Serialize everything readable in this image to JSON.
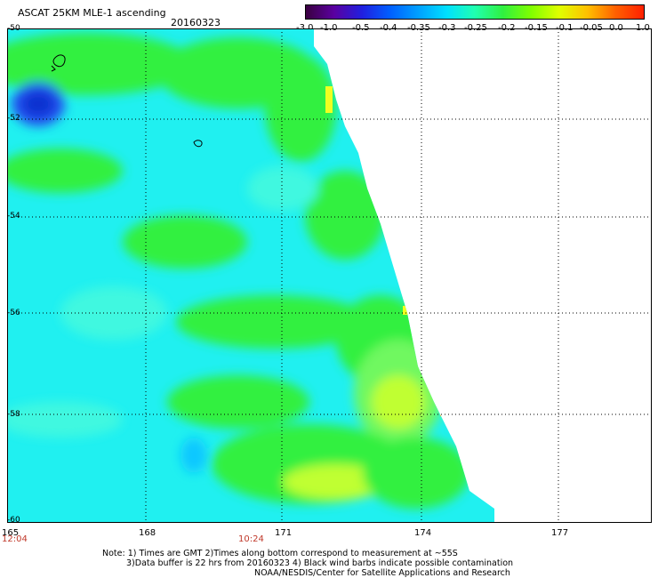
{
  "header": {
    "title": "ASCAT 25KM MLE-1 ascending",
    "date": "20160323"
  },
  "colorbar": {
    "labels": [
      "-3.0",
      "-1.0",
      "-0.5",
      "-0.4",
      "-0.35",
      "-0.3",
      "-0.25",
      "-0.2",
      "-0.15",
      "-0.1",
      "-0.05",
      "0.0",
      "1.0"
    ],
    "colors": [
      "#3a0040",
      "#5a00a0",
      "#2020e0",
      "#0060ff",
      "#00a0ff",
      "#00e0ff",
      "#20ffb0",
      "#30f040",
      "#80ff00",
      "#e0ff00",
      "#ffc000",
      "#ff6000",
      "#ff2000"
    ]
  },
  "map": {
    "lat_labels": [
      "-50",
      "-52",
      "-54",
      "-56",
      "-58",
      "-60"
    ],
    "lon_labels": [
      "165",
      "168",
      "171",
      "174",
      "177"
    ],
    "time_labels": [
      "12:04",
      "10:24"
    ],
    "colors": {
      "cyan": "#20f0f0",
      "cyan_light": "#40f8e0",
      "green": "#30f040",
      "green_light": "#70f860",
      "yellowgreen": "#c0ff30",
      "yellow": "#f0ff20",
      "orange": "#ffa000",
      "blue": "#2050f0",
      "darkblue": "#1030d0"
    }
  },
  "notes": {
    "line1": "Note: 1) Times are GMT 2)Times along bottom correspond to measurement at ~55S",
    "line2": "3)Data buffer is 22 hrs from 20160323 4) Black wind barbs indicate possible contamination",
    "line3": "NOAA/NESDIS/Center for Satellite Applications and Research"
  }
}
